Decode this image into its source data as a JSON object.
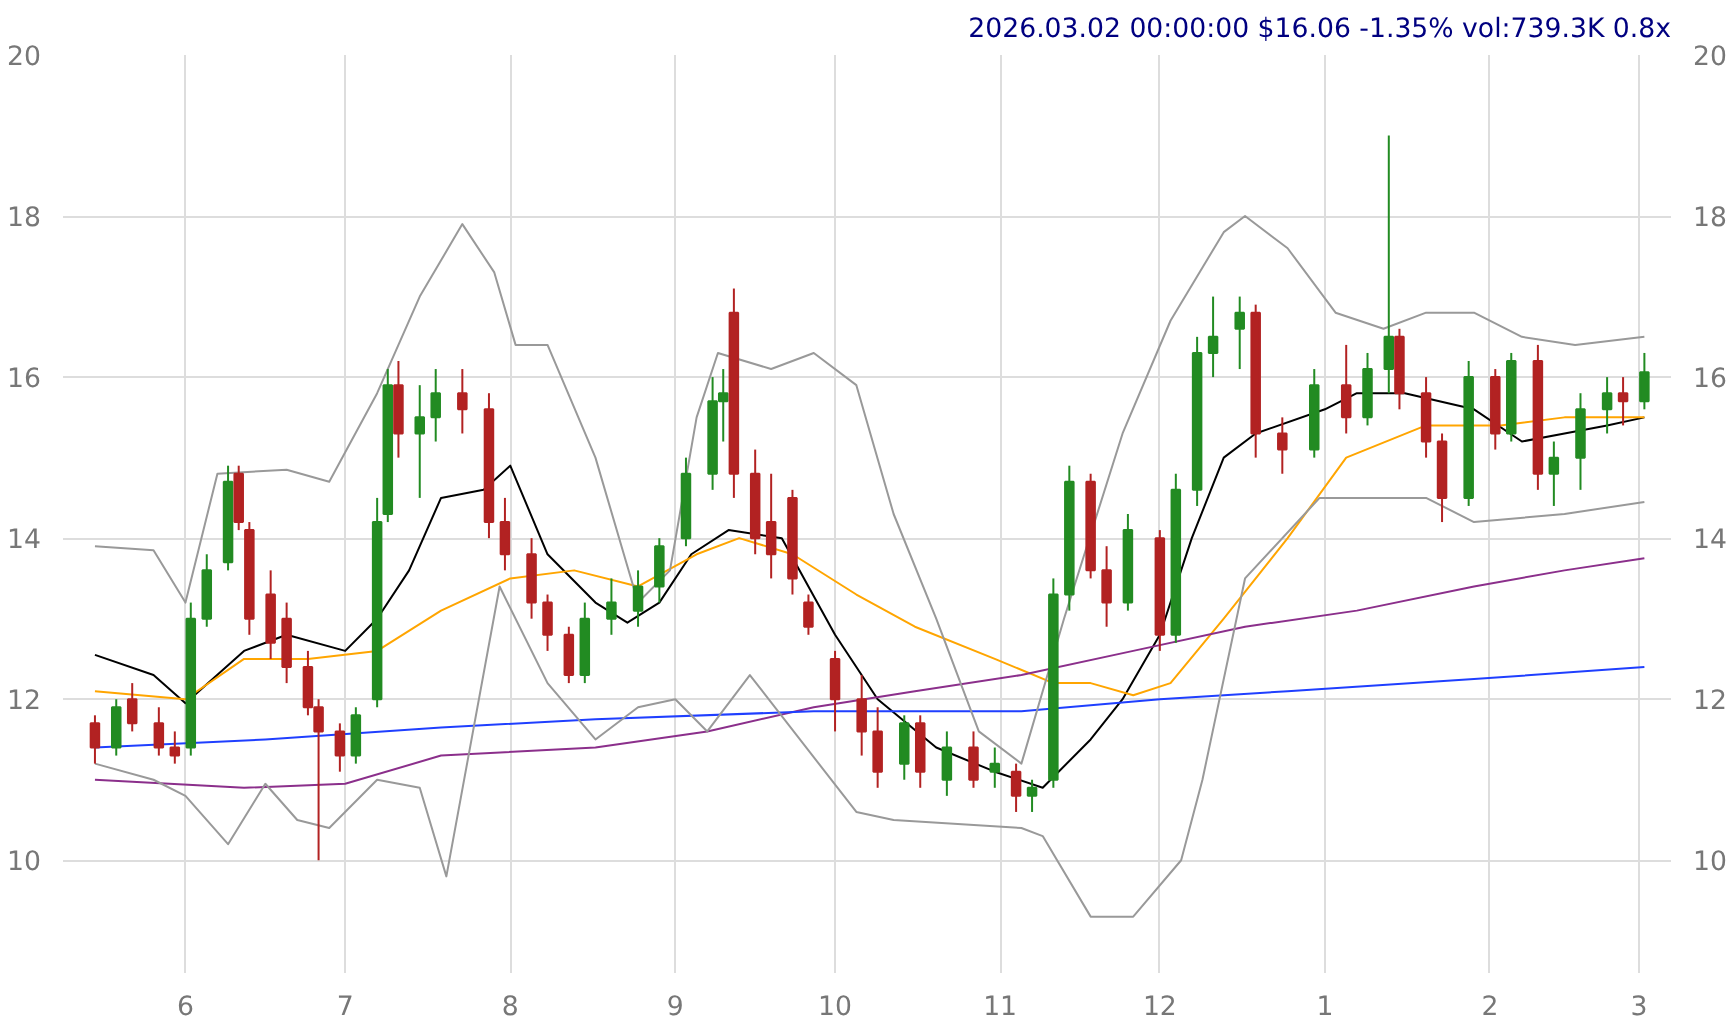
{
  "chart_data": {
    "type": "candlestick",
    "title": "2026.03.02 00:00:00 $16.06 -1.35% vol:739.3K 0.8x",
    "x": [
      "2025-05-15",
      "2025-05-19",
      "2025-05-22",
      "2025-05-27",
      "2025-05-30",
      "2025-06-02",
      "2025-06-05",
      "2025-06-09",
      "2025-06-11",
      "2025-06-13",
      "2025-06-17",
      "2025-06-20",
      "2025-06-24",
      "2025-06-26",
      "2025-06-30",
      "2025-07-03",
      "2025-07-07",
      "2025-07-09",
      "2025-07-11",
      "2025-07-15",
      "2025-07-18",
      "2025-07-23",
      "2025-07-28",
      "2025-07-31",
      "2025-08-05",
      "2025-08-08",
      "2025-08-12",
      "2025-08-15",
      "2025-08-20",
      "2025-08-25",
      "2025-08-29",
      "2025-09-03",
      "2025-09-08",
      "2025-09-10",
      "2025-09-12",
      "2025-09-16",
      "2025-09-19",
      "2025-09-23",
      "2025-09-26",
      "2025-10-01",
      "2025-10-06",
      "2025-10-09",
      "2025-10-14",
      "2025-10-17",
      "2025-10-22",
      "2025-10-27",
      "2025-10-31",
      "2025-11-04",
      "2025-11-07",
      "2025-11-11",
      "2025-11-14",
      "2025-11-18",
      "2025-11-21",
      "2025-11-25",
      "2025-12-01",
      "2025-12-04",
      "2025-12-08",
      "2025-12-11",
      "2025-12-16",
      "2025-12-19",
      "2025-12-24",
      "2025-12-30",
      "2026-01-05",
      "2026-01-09",
      "2026-01-13",
      "2026-01-15",
      "2026-01-20",
      "2026-01-23",
      "2026-01-28",
      "2026-02-02",
      "2026-02-05",
      "2026-02-10",
      "2026-02-13",
      "2026-02-18",
      "2026-02-23",
      "2026-02-26",
      "2026-03-02"
    ],
    "ohlc": [
      [
        11.7,
        11.8,
        11.2,
        11.4
      ],
      [
        11.4,
        12.0,
        11.3,
        11.9
      ],
      [
        12.0,
        12.2,
        11.6,
        11.7
      ],
      [
        11.7,
        11.9,
        11.3,
        11.4
      ],
      [
        11.4,
        11.6,
        11.2,
        11.3
      ],
      [
        11.4,
        13.2,
        11.3,
        13.0
      ],
      [
        13.0,
        13.8,
        12.9,
        13.6
      ],
      [
        13.7,
        14.9,
        13.6,
        14.7
      ],
      [
        14.8,
        14.9,
        14.1,
        14.2
      ],
      [
        14.1,
        14.2,
        12.8,
        13.0
      ],
      [
        13.3,
        13.6,
        12.5,
        12.7
      ],
      [
        13.0,
        13.2,
        12.2,
        12.4
      ],
      [
        12.4,
        12.6,
        11.8,
        11.9
      ],
      [
        11.9,
        12.0,
        10.0,
        11.6
      ],
      [
        11.6,
        11.7,
        11.1,
        11.3
      ],
      [
        11.3,
        11.9,
        11.2,
        11.8
      ],
      [
        12.0,
        14.5,
        11.9,
        14.2
      ],
      [
        14.3,
        16.1,
        14.2,
        15.9
      ],
      [
        15.9,
        16.2,
        15.0,
        15.3
      ],
      [
        15.3,
        15.9,
        14.5,
        15.5
      ],
      [
        15.5,
        16.1,
        15.2,
        15.8
      ],
      [
        15.8,
        16.1,
        15.3,
        15.6
      ],
      [
        15.6,
        15.8,
        14.0,
        14.2
      ],
      [
        14.2,
        14.5,
        13.6,
        13.8
      ],
      [
        13.8,
        14.0,
        13.0,
        13.2
      ],
      [
        13.2,
        13.3,
        12.6,
        12.8
      ],
      [
        12.8,
        12.9,
        12.2,
        12.3
      ],
      [
        12.3,
        13.2,
        12.2,
        13.0
      ],
      [
        13.0,
        13.5,
        12.8,
        13.2
      ],
      [
        13.1,
        13.6,
        12.9,
        13.4
      ],
      [
        13.4,
        14.0,
        13.2,
        13.9
      ],
      [
        14.0,
        15.0,
        13.9,
        14.8
      ],
      [
        14.8,
        16.0,
        14.6,
        15.7
      ],
      [
        15.7,
        16.1,
        15.2,
        15.8
      ],
      [
        16.8,
        17.1,
        14.5,
        14.8
      ],
      [
        14.8,
        15.1,
        13.8,
        14.0
      ],
      [
        14.2,
        14.8,
        13.5,
        13.8
      ],
      [
        14.5,
        14.6,
        13.3,
        13.5
      ],
      [
        13.2,
        13.3,
        12.8,
        12.9
      ],
      [
        12.5,
        12.6,
        11.6,
        12.0
      ],
      [
        12.0,
        12.3,
        11.3,
        11.6
      ],
      [
        11.6,
        11.9,
        10.9,
        11.1
      ],
      [
        11.2,
        11.8,
        11.0,
        11.7
      ],
      [
        11.7,
        11.8,
        10.9,
        11.1
      ],
      [
        11.0,
        11.6,
        10.8,
        11.4
      ],
      [
        11.4,
        11.6,
        10.9,
        11.0
      ],
      [
        11.1,
        11.4,
        10.9,
        11.2
      ],
      [
        11.1,
        11.2,
        10.6,
        10.8
      ],
      [
        10.8,
        11.0,
        10.6,
        10.9
      ],
      [
        11.0,
        13.5,
        10.9,
        13.3
      ],
      [
        13.3,
        14.9,
        13.1,
        14.7
      ],
      [
        14.7,
        14.8,
        13.5,
        13.6
      ],
      [
        13.6,
        13.9,
        12.9,
        13.2
      ],
      [
        13.2,
        14.3,
        13.1,
        14.1
      ],
      [
        14.0,
        14.1,
        12.6,
        12.8
      ],
      [
        12.8,
        14.8,
        12.7,
        14.6
      ],
      [
        14.6,
        16.5,
        14.4,
        16.3
      ],
      [
        16.3,
        17.0,
        16.0,
        16.5
      ],
      [
        16.6,
        17.0,
        16.1,
        16.8
      ],
      [
        16.8,
        16.9,
        15.0,
        15.3
      ],
      [
        15.3,
        15.5,
        14.8,
        15.1
      ],
      [
        15.1,
        16.1,
        15.0,
        15.9
      ],
      [
        15.9,
        16.4,
        15.3,
        15.5
      ],
      [
        15.5,
        16.3,
        15.4,
        16.1
      ],
      [
        16.1,
        19.0,
        15.8,
        16.5
      ],
      [
        16.5,
        16.6,
        15.6,
        15.8
      ],
      [
        15.8,
        16.0,
        15.0,
        15.2
      ],
      [
        15.2,
        15.3,
        14.2,
        14.5
      ],
      [
        14.5,
        16.2,
        14.4,
        16.0
      ],
      [
        16.0,
        16.1,
        15.1,
        15.3
      ],
      [
        15.3,
        16.3,
        15.2,
        16.2
      ],
      [
        16.2,
        16.4,
        14.6,
        14.8
      ],
      [
        14.8,
        15.2,
        14.4,
        15.0
      ],
      [
        15.0,
        15.8,
        14.6,
        15.6
      ],
      [
        15.6,
        16.0,
        15.3,
        15.8
      ],
      [
        15.8,
        16.0,
        15.4,
        15.7
      ],
      [
        15.7,
        16.3,
        15.6,
        16.06
      ]
    ],
    "colors": [
      "#b22222",
      "#228b22",
      "#b22222",
      "#b22222",
      "#b22222",
      "#228b22",
      "#228b22",
      "#228b22",
      "#b22222",
      "#b22222",
      "#b22222",
      "#b22222",
      "#b22222",
      "#b22222",
      "#b22222",
      "#228b22",
      "#228b22",
      "#228b22",
      "#b22222",
      "#228b22",
      "#228b22",
      "#b22222",
      "#b22222",
      "#b22222",
      "#b22222",
      "#b22222",
      "#b22222",
      "#228b22",
      "#228b22",
      "#228b22",
      "#228b22",
      "#228b22",
      "#228b22",
      "#228b22",
      "#b22222",
      "#b22222",
      "#b22222",
      "#b22222",
      "#b22222",
      "#b22222",
      "#b22222",
      "#b22222",
      "#228b22",
      "#b22222",
      "#228b22",
      "#b22222",
      "#228b22",
      "#b22222",
      "#228b22",
      "#228b22",
      "#228b22",
      "#b22222",
      "#b22222",
      "#228b22",
      "#b22222",
      "#228b22",
      "#228b22",
      "#228b22",
      "#228b22",
      "#b22222",
      "#b22222",
      "#228b22",
      "#b22222",
      "#228b22",
      "#228b22",
      "#b22222",
      "#b22222",
      "#b22222",
      "#228b22",
      "#b22222",
      "#228b22",
      "#b22222",
      "#228b22",
      "#228b22",
      "#228b22",
      "#b22222",
      "#228b22"
    ],
    "series": [
      {
        "type": "line",
        "color": "#000000",
        "x": [
          "2025-05-15",
          "2025-05-26",
          "2025-06-01",
          "2025-06-12",
          "2025-06-20",
          "2025-07-01",
          "2025-07-07",
          "2025-07-13",
          "2025-07-19",
          "2025-07-27",
          "2025-08-01",
          "2025-08-08",
          "2025-08-17",
          "2025-08-23",
          "2025-08-29",
          "2025-09-04",
          "2025-09-11",
          "2025-09-21",
          "2025-10-01",
          "2025-10-09",
          "2025-10-20",
          "2025-10-31",
          "2025-11-09",
          "2025-11-18",
          "2025-11-24",
          "2025-12-01",
          "2025-12-07",
          "2025-12-13",
          "2025-12-19",
          "2026-01-01",
          "2026-01-07",
          "2026-01-16",
          "2026-01-29",
          "2026-02-07",
          "2026-02-15",
          "2026-02-23",
          "2026-03-02"
        ],
        "values": [
          12.55,
          12.3,
          11.95,
          12.6,
          12.8,
          12.6,
          13.0,
          13.6,
          14.5,
          14.6,
          14.9,
          13.8,
          13.2,
          12.95,
          13.2,
          13.8,
          14.1,
          14.0,
          12.8,
          12.0,
          11.4,
          11.1,
          10.9,
          11.5,
          12.0,
          12.8,
          14.0,
          15.0,
          15.3,
          15.6,
          15.8,
          15.8,
          15.6,
          15.2,
          15.3,
          15.4,
          15.5
        ]
      },
      {
        "type": "line",
        "color": "#ffa500",
        "x": [
          "2025-05-15",
          "2025-06-01",
          "2025-06-12",
          "2025-06-24",
          "2025-07-07",
          "2025-07-19",
          "2025-08-01",
          "2025-08-13",
          "2025-08-25",
          "2025-09-05",
          "2025-09-13",
          "2025-09-23",
          "2025-10-05",
          "2025-10-16",
          "2025-10-31",
          "2025-11-11",
          "2025-11-18",
          "2025-11-26",
          "2025-12-03",
          "2025-12-13",
          "2025-12-25",
          "2026-01-05",
          "2026-01-20",
          "2026-02-03",
          "2026-02-15",
          "2026-03-02"
        ],
        "values": [
          12.1,
          12.0,
          12.5,
          12.5,
          12.6,
          13.1,
          13.5,
          13.6,
          13.4,
          13.8,
          14.0,
          13.8,
          13.3,
          12.9,
          12.5,
          12.2,
          12.2,
          12.05,
          12.2,
          13.0,
          14.0,
          15.0,
          15.4,
          15.4,
          15.5,
          15.5
        ]
      },
      {
        "type": "line",
        "color": "#8b2f8b",
        "x": [
          "2025-05-15",
          "2025-06-12",
          "2025-07-01",
          "2025-07-19",
          "2025-08-17",
          "2025-09-07",
          "2025-09-27",
          "2025-10-16",
          "2025-11-05",
          "2025-11-26",
          "2025-12-17",
          "2026-01-07",
          "2026-01-29",
          "2026-02-15",
          "2026-03-02"
        ],
        "values": [
          11.0,
          10.9,
          10.95,
          11.3,
          11.4,
          11.6,
          11.9,
          12.1,
          12.3,
          12.6,
          12.9,
          13.1,
          13.4,
          13.6,
          13.75
        ]
      },
      {
        "type": "line",
        "color": "#1f3fff",
        "x": [
          "2025-05-15",
          "2025-06-16",
          "2025-07-19",
          "2025-08-17",
          "2025-09-27",
          "2025-11-05",
          "2025-12-01",
          "2025-12-25",
          "2026-01-29",
          "2026-03-02"
        ],
        "values": [
          11.4,
          11.5,
          11.65,
          11.75,
          11.85,
          11.85,
          12.0,
          12.1,
          12.25,
          12.4
        ]
      },
      {
        "type": "line",
        "color": "#999999",
        "x": [
          "2025-05-15",
          "2025-05-26",
          "2025-06-01",
          "2025-06-07",
          "2025-06-20",
          "2025-06-28",
          "2025-07-07",
          "2025-07-15",
          "2025-07-23",
          "2025-07-29",
          "2025-08-02",
          "2025-08-08",
          "2025-08-17",
          "2025-08-25",
          "2025-08-31",
          "2025-09-05",
          "2025-09-09",
          "2025-09-19",
          "2025-09-27",
          "2025-10-05",
          "2025-10-12",
          "2025-10-20",
          "2025-10-28",
          "2025-11-05",
          "2025-11-13",
          "2025-11-24",
          "2025-12-03",
          "2025-12-13",
          "2025-12-17",
          "2025-12-25",
          "2026-01-03",
          "2026-01-12",
          "2026-01-20",
          "2026-01-29",
          "2026-02-07",
          "2026-02-17",
          "2026-03-02"
        ],
        "values": [
          13.9,
          13.85,
          13.2,
          14.8,
          14.85,
          14.7,
          15.8,
          17.0,
          17.9,
          17.3,
          16.4,
          16.4,
          15.0,
          13.2,
          13.6,
          15.5,
          16.3,
          16.1,
          16.3,
          15.9,
          14.3,
          13.0,
          11.6,
          11.2,
          13.0,
          15.3,
          16.7,
          17.8,
          18.0,
          17.6,
          16.8,
          16.6,
          16.8,
          16.8,
          16.5,
          16.4,
          16.5
        ]
      },
      {
        "type": "line",
        "color": "#999999",
        "x": [
          "2025-05-15",
          "2025-05-26",
          "2025-06-01",
          "2025-06-09",
          "2025-06-16",
          "2025-06-22",
          "2025-06-28",
          "2025-07-07",
          "2025-07-15",
          "2025-07-20",
          "2025-07-30",
          "2025-08-08",
          "2025-08-17",
          "2025-08-25",
          "2025-09-01",
          "2025-09-07",
          "2025-09-15",
          "2025-10-05",
          "2025-10-12",
          "2025-11-05",
          "2025-11-09",
          "2025-11-18",
          "2025-11-26",
          "2025-12-05",
          "2025-12-09",
          "2025-12-17",
          "2025-12-31",
          "2026-01-20",
          "2026-01-29",
          "2026-02-15",
          "2026-03-02"
        ],
        "values": [
          11.2,
          11.0,
          10.8,
          10.2,
          10.95,
          10.5,
          10.4,
          11.0,
          10.9,
          9.8,
          13.4,
          12.2,
          11.5,
          11.9,
          12.0,
          11.6,
          12.3,
          10.6,
          10.5,
          10.4,
          10.3,
          9.3,
          9.3,
          10.0,
          11.0,
          13.5,
          14.5,
          14.5,
          14.2,
          14.3,
          14.45
        ]
      }
    ],
    "xlim": [
      "2025-05-09",
      "2026-03-07"
    ],
    "xticks": [
      {
        "value": "2025-06-01",
        "label": "6"
      },
      {
        "value": "2025-07-01",
        "label": "7"
      },
      {
        "value": "2025-08-01",
        "label": "8"
      },
      {
        "value": "2025-09-01",
        "label": "9"
      },
      {
        "value": "2025-10-01",
        "label": "10"
      },
      {
        "value": "2025-11-01",
        "label": "11"
      },
      {
        "value": "2025-12-01",
        "label": "12"
      },
      {
        "value": "2026-01-01",
        "label": "1"
      },
      {
        "value": "2026-02-01",
        "label": "2"
      },
      {
        "value": "2026-03-01",
        "label": "3"
      }
    ],
    "ylim": [
      8.6,
      20
    ],
    "yticks": [
      10,
      12,
      14,
      16,
      18,
      20
    ],
    "y2lim": [
      8.6,
      20
    ],
    "y2ticks": [
      10,
      12,
      14,
      16,
      18,
      20
    ],
    "grid": true
  }
}
